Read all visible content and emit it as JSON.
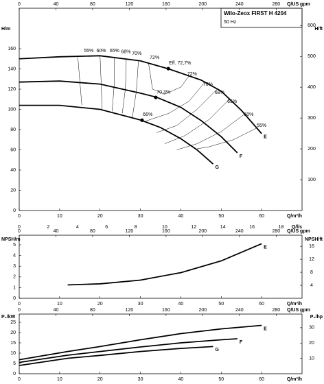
{
  "chart_data": [
    {
      "type": "line",
      "title": "Wilo-Zeox FIRST H 4204",
      "subtitle": "50 Hz",
      "y_label": "H/m",
      "y2_label": "H/ft",
      "x_label": "Q/m³/h",
      "x2_label": "Q/US gpm",
      "x3_label": "Q/l/s",
      "xlim": [
        0,
        70
      ],
      "xticks": [
        0,
        10,
        20,
        30,
        40,
        50,
        60
      ],
      "x2lim": [
        0,
        308.2
      ],
      "x2ticks": [
        0,
        40,
        80,
        120,
        160,
        200,
        240,
        280
      ],
      "x3lim": [
        0,
        19.44
      ],
      "x3ticks": [
        0,
        2,
        4,
        6,
        8,
        10,
        12,
        14,
        16,
        18
      ],
      "ylim": [
        0,
        200
      ],
      "yticks": [
        0,
        20,
        40,
        60,
        80,
        100,
        120,
        140,
        160
      ],
      "y2lim": [
        0,
        656.2
      ],
      "y2ticks": [
        100,
        200,
        300,
        400,
        500,
        600
      ],
      "series": [
        {
          "name": "E",
          "color": "#000000",
          "x": [
            0,
            10,
            20,
            30,
            37,
            45,
            50,
            55,
            60
          ],
          "values": [
            150,
            152,
            153,
            148,
            140,
            129,
            118,
            99,
            76
          ]
        },
        {
          "name": "F",
          "color": "#000000",
          "x": [
            0,
            10,
            20,
            30,
            34,
            40,
            45,
            50,
            54
          ],
          "values": [
            127,
            128,
            125,
            116,
            112,
            102,
            89,
            73,
            57
          ]
        },
        {
          "name": "G",
          "color": "#000000",
          "x": [
            0,
            10,
            20,
            30,
            35,
            40,
            44,
            48
          ],
          "values": [
            104,
            104,
            100,
            89.5,
            82,
            71,
            60,
            46
          ]
        }
      ],
      "efficiency_lines": [
        {
          "x": [
            14.5,
            15,
            15.5
          ],
          "y": [
            152,
            128,
            104
          ]
        },
        {
          "x": [
            20,
            20.3,
            20.5
          ],
          "y": [
            153,
            125,
            100
          ]
        },
        {
          "x": [
            23.5,
            23.5,
            23
          ],
          "y": [
            152,
            124,
            98
          ]
        },
        {
          "x": [
            26.5,
            26.3,
            25.5
          ],
          "y": [
            150,
            121,
            96
          ]
        },
        {
          "x": [
            29.5,
            29,
            28
          ],
          "y": [
            148,
            118,
            92
          ]
        },
        {
          "x": [
            32,
            33,
            36,
            40,
            42
          ],
          "y": [
            146,
            120,
            115,
            122,
            133
          ]
        },
        {
          "x": [
            46,
            42,
            37,
            31
          ],
          "y": [
            127,
            108,
            96,
            88
          ]
        },
        {
          "x": [
            49,
            44,
            39,
            34
          ],
          "y": [
            120,
            100,
            84,
            77
          ]
        },
        {
          "x": [
            52,
            47,
            41,
            36
          ],
          "y": [
            110,
            90,
            74,
            66
          ]
        },
        {
          "x": [
            56,
            50,
            44,
            39
          ],
          "y": [
            96,
            78,
            66,
            60
          ]
        },
        {
          "x": [
            59,
            53,
            47,
            44
          ],
          "y": [
            82,
            70,
            63,
            61
          ]
        }
      ],
      "efficiency_labels": {
        "labels": [
          "55%",
          "60%",
          "65%",
          "68%",
          "70%",
          "72%",
          "Eff. 72,7%",
          "72%",
          "70%",
          "68%",
          "65%",
          "60%",
          "55%",
          "70,3%",
          "66%"
        ],
        "x": [
          17.2,
          20.3,
          23.6,
          26.4,
          29.1,
          33.5,
          39.8,
          42.8,
          46.7,
          49.6,
          52.7,
          56.8,
          60,
          35.7,
          31.8
        ],
        "y": [
          158,
          158,
          158,
          157,
          155,
          151,
          145.5,
          134.8,
          124.6,
          116.5,
          107.7,
          94.8,
          83.9,
          117,
          94.8
        ]
      },
      "duty_points": {
        "x": [
          36.9,
          33.8,
          30.4
        ],
        "y": [
          140.3,
          111.8,
          89.3
        ]
      }
    },
    {
      "type": "line",
      "y_label": "NPSH/m",
      "y2_label": "NPSH/ft",
      "x_label": "Q/m³/h",
      "x2_label": "Q/US gpm",
      "xlim": [
        0,
        70
      ],
      "xticks": [
        0,
        10,
        20,
        30,
        40,
        50,
        60
      ],
      "x2lim": [
        0,
        308.2
      ],
      "x2ticks": [
        0,
        40,
        80,
        120,
        160,
        200,
        240,
        280
      ],
      "ylim": [
        0,
        5.9
      ],
      "yticks": [
        0,
        1,
        2,
        3,
        4,
        5
      ],
      "y2lim": [
        0,
        19.4
      ],
      "y2ticks": [
        4,
        8,
        12,
        16
      ],
      "series": [
        {
          "name": "E",
          "color": "#000000",
          "x": [
            12,
            20,
            30,
            40,
            50,
            60
          ],
          "values": [
            1.25,
            1.35,
            1.7,
            2.4,
            3.5,
            5.1
          ]
        }
      ]
    },
    {
      "type": "line",
      "y_label": "P₂/kW",
      "y2_label": "P₂/hp",
      "x_label": "Q/m³/h",
      "x2_label": "Q/US gpm",
      "xlim": [
        0,
        70
      ],
      "xticks": [
        0,
        10,
        20,
        30,
        40,
        50,
        60
      ],
      "x2lim": [
        0,
        308.2
      ],
      "x2ticks": [
        0,
        40,
        80,
        120,
        160,
        200,
        240,
        280
      ],
      "ylim": [
        0,
        29
      ],
      "yticks": [
        0,
        5,
        10,
        15,
        20,
        25
      ],
      "y2lim": [
        0,
        38.9
      ],
      "y2ticks": [
        10,
        20,
        30
      ],
      "series": [
        {
          "name": "E",
          "color": "#000000",
          "x": [
            0,
            12,
            20,
            30,
            40,
            50,
            60
          ],
          "values": [
            6.8,
            10.8,
            13.2,
            16.5,
            19.5,
            21.8,
            23.5
          ]
        },
        {
          "name": "F",
          "color": "#000000",
          "x": [
            0,
            12,
            20,
            30,
            40,
            50,
            54
          ],
          "values": [
            5.5,
            9,
            10.8,
            13,
            15,
            16.5,
            17
          ]
        },
        {
          "name": "G",
          "color": "#000000",
          "x": [
            0,
            12,
            20,
            30,
            40,
            48
          ],
          "values": [
            4,
            7.5,
            8.9,
            10.8,
            12.3,
            13.2
          ]
        }
      ]
    }
  ]
}
